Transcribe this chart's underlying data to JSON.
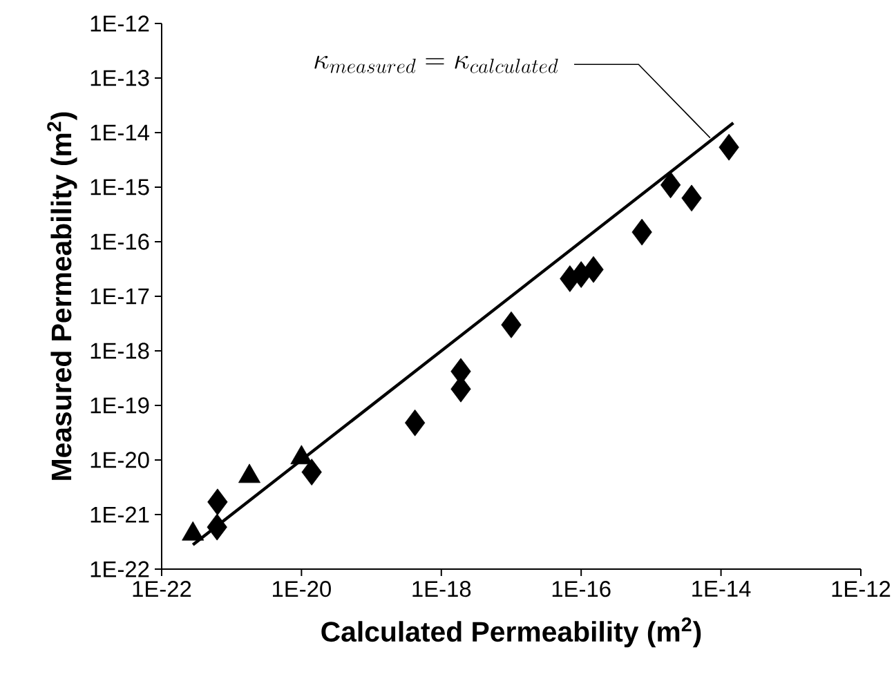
{
  "chart_data": {
    "type": "scatter",
    "xlabel": "Calculated Permeability (m$^{2}$)",
    "ylabel": "Measured Permeability (m$^{2}$)",
    "log": "xy",
    "grid": false,
    "xlim": [
      1e-22,
      1e-12
    ],
    "ylim": [
      1e-22,
      1e-12
    ],
    "xticks": [
      {
        "value": 1e-22,
        "label": "1E-22"
      },
      {
        "value": 1e-20,
        "label": "1E-20"
      },
      {
        "value": 1e-18,
        "label": "1E-18"
      },
      {
        "value": 1e-16,
        "label": "1E-16"
      },
      {
        "value": 1e-14,
        "label": "1E-14"
      },
      {
        "value": 1e-12,
        "label": "1E-12"
      }
    ],
    "yticks": [
      {
        "value": 1e-22,
        "label": "1E-22"
      },
      {
        "value": 1e-21,
        "label": "1E-21"
      },
      {
        "value": 1e-20,
        "label": "1E-20"
      },
      {
        "value": 1e-19,
        "label": "1E-19"
      },
      {
        "value": 1e-18,
        "label": "1E-18"
      },
      {
        "value": 1e-17,
        "label": "1E-17"
      },
      {
        "value": 1e-16,
        "label": "1E-16"
      },
      {
        "value": 1e-15,
        "label": "1E-15"
      },
      {
        "value": 1e-14,
        "label": "1E-14"
      },
      {
        "value": 1e-13,
        "label": "1E-13"
      },
      {
        "value": 1e-12,
        "label": "1E-12"
      }
    ],
    "series": [
      {
        "type": "line",
        "color": "#000000",
        "marker": "none",
        "line_style": "solid",
        "x": [
          2.8e-22,
          1.5e-14
        ],
        "values": [
          2.8e-22,
          1.5e-14
        ]
      },
      {
        "color": "#000000",
        "marker": "diamond",
        "x": [
          6.2e-22,
          6.3e-22,
          1.4e-20,
          4.2e-19,
          1.9e-18,
          1.9e-18,
          1e-17,
          6.9e-17,
          1e-16,
          1.5e-16,
          7.4e-16,
          1.9e-15,
          3.8e-15,
          1.3e-14
        ],
        "values": [
          5.9e-22,
          1.7e-21,
          6e-21,
          4.8e-20,
          2e-19,
          4.2e-19,
          3e-18,
          2.1e-17,
          2.5e-17,
          3.1e-17,
          1.5e-16,
          1.1e-15,
          6.3e-16,
          5.4e-15
        ]
      },
      {
        "color": "#000000",
        "marker": "triangle",
        "x": [
          2.8e-22,
          1.8e-21,
          1e-20
        ],
        "values": [
          4.4e-22,
          5e-21,
          1.1e-20
        ]
      }
    ],
    "annotations": [
      {
        "text": "\\kappa_{measured} = \\kappa_{calculated}",
        "x": 7e-15,
        "y": 8e-15
      }
    ]
  }
}
